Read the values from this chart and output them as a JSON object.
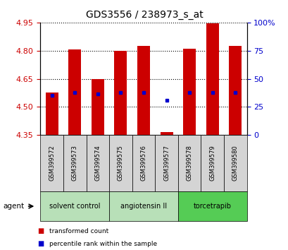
{
  "title": "GDS3556 / 238973_s_at",
  "samples": [
    "GSM399572",
    "GSM399573",
    "GSM399574",
    "GSM399575",
    "GSM399576",
    "GSM399577",
    "GSM399578",
    "GSM399579",
    "GSM399580"
  ],
  "bar_bottoms": [
    4.35,
    4.35,
    4.35,
    4.35,
    4.35,
    4.35,
    4.35,
    4.35,
    4.35
  ],
  "bar_tops": [
    4.575,
    4.805,
    4.65,
    4.8,
    4.825,
    4.365,
    4.81,
    4.945,
    4.825
  ],
  "blue_dots": [
    4.56,
    4.575,
    4.57,
    4.575,
    4.575,
    4.535,
    4.575,
    4.575,
    4.575
  ],
  "bar_color": "#cc0000",
  "dot_color": "#0000cc",
  "ylim_left": [
    4.35,
    4.95
  ],
  "yticks_left": [
    4.35,
    4.5,
    4.65,
    4.8,
    4.95
  ],
  "yticks_right": [
    0,
    25,
    50,
    75,
    100
  ],
  "ylabel_left_color": "#cc0000",
  "ylabel_right_color": "#0000cc",
  "group_colors": [
    "#b8e0b8",
    "#b8e0b8",
    "#55cc55"
  ],
  "groups": [
    {
      "label": "solvent control",
      "indices": [
        0,
        1,
        2
      ]
    },
    {
      "label": "angiotensin II",
      "indices": [
        3,
        4,
        5
      ]
    },
    {
      "label": "torcetrapib",
      "indices": [
        6,
        7,
        8
      ]
    }
  ],
  "agent_label": "agent",
  "legend_items": [
    {
      "label": "transformed count",
      "color": "#cc0000"
    },
    {
      "label": "percentile rank within the sample",
      "color": "#0000cc"
    }
  ],
  "bg_color": "#ffffff",
  "bar_width": 0.55,
  "cell_bg": "#d4d4d4"
}
